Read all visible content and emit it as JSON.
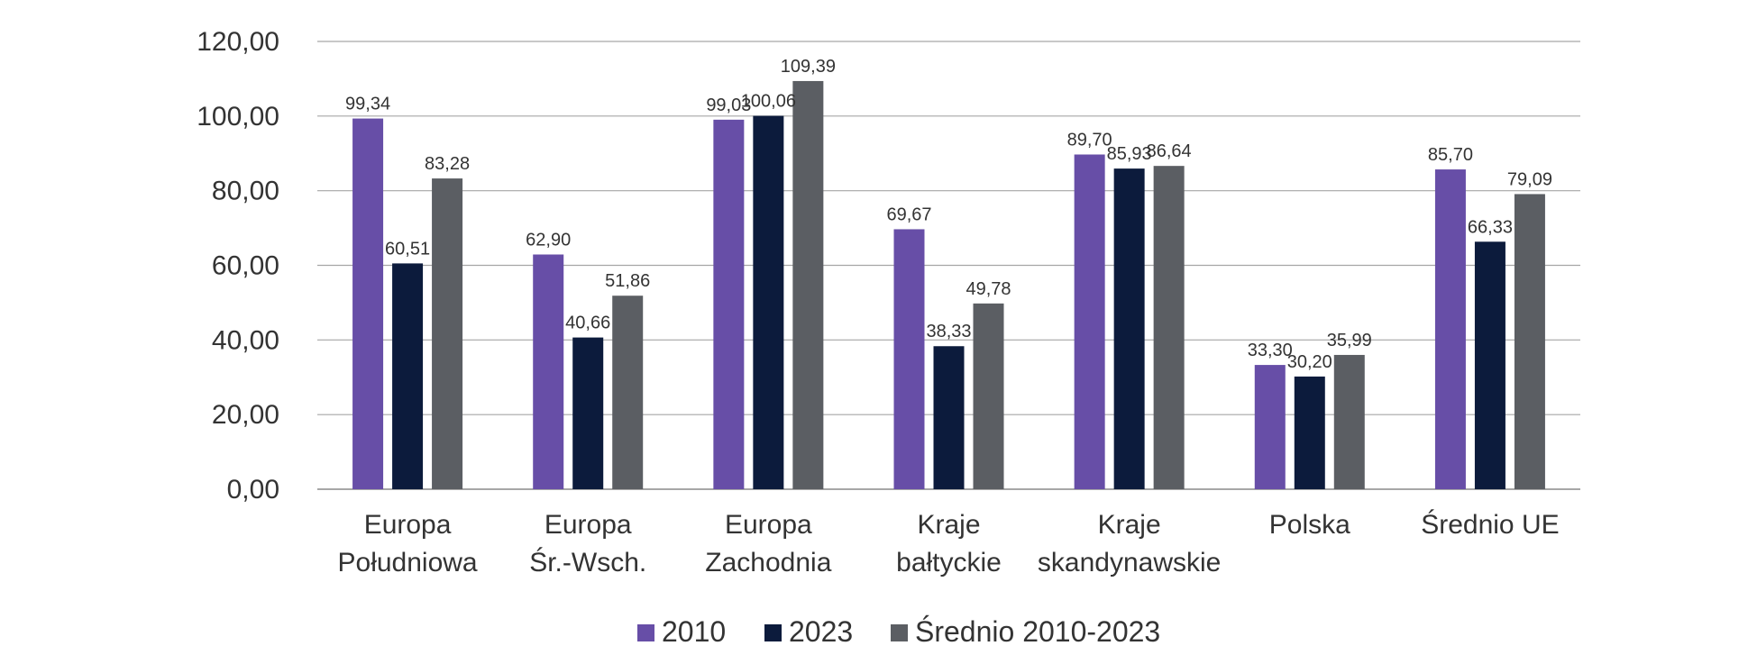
{
  "chart_data": {
    "type": "bar",
    "title": "",
    "xlabel": "",
    "ylabel": "",
    "ylim": [
      0,
      120
    ],
    "y_ticks": [
      "0,00",
      "20,00",
      "40,00",
      "60,00",
      "80,00",
      "100,00",
      "120,00"
    ],
    "y_tick_values": [
      0,
      20,
      40,
      60,
      80,
      100,
      120
    ],
    "grid": true,
    "legend_position": "bottom",
    "categories": [
      [
        "Europa",
        "Południowa"
      ],
      [
        "Europa",
        "Śr.-Wsch."
      ],
      [
        "Europa",
        "Zachodnia"
      ],
      [
        "Kraje",
        "bałtyckie"
      ],
      [
        "Kraje",
        "skandynawskie"
      ],
      [
        "Polska"
      ],
      [
        "Średnio UE"
      ]
    ],
    "series": [
      {
        "name": "2010",
        "color": "#674ea7",
        "values": [
          99.34,
          62.9,
          99.03,
          69.67,
          89.7,
          33.3,
          85.7
        ],
        "labels": [
          "99,34",
          "62,90",
          "99,03",
          "69,67",
          "89,70",
          "33,30",
          "85,70"
        ]
      },
      {
        "name": "2023",
        "color": "#0c1b3c",
        "values": [
          60.51,
          40.66,
          100.06,
          38.33,
          85.93,
          30.2,
          66.33
        ],
        "labels": [
          "60,51",
          "40,66",
          "100,06",
          "38,33",
          "85,93",
          "30,20",
          "66,33"
        ]
      },
      {
        "name": "Średnio 2010-2023",
        "color": "#5b5e63",
        "values": [
          83.28,
          51.86,
          109.39,
          49.78,
          86.64,
          35.99,
          79.09
        ],
        "labels": [
          "83,28",
          "51,86",
          "109,39",
          "49,78",
          "86,64",
          "35,99",
          "79,09"
        ]
      }
    ]
  }
}
